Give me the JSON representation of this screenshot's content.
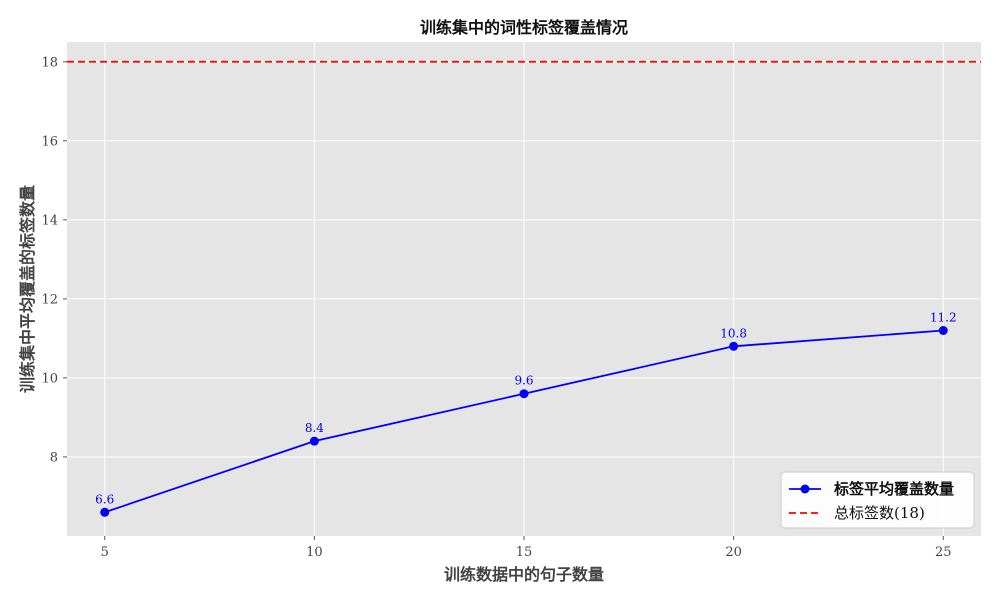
{
  "chart_data": {
    "type": "line",
    "title": "训练集中的词性标签覆盖情况",
    "xlabel": "训练数据中的句子数量",
    "ylabel": "训练集中平均覆盖的标签数量",
    "x": [
      5,
      10,
      15,
      20,
      25
    ],
    "series": [
      {
        "name": "标签平均覆盖数量",
        "values": [
          6.6,
          8.4,
          9.6,
          10.8,
          11.2
        ],
        "data_labels": [
          "6.6",
          "8.4",
          "9.6",
          "10.8",
          "11.2"
        ],
        "color": "#0000ff",
        "marker": "circle"
      }
    ],
    "reference_line": {
      "name": "总标签数(18)",
      "value": 18,
      "color": "#ff0000",
      "style": "dashed"
    },
    "xlim": [
      4.1,
      25.9
    ],
    "ylim": [
      6.0,
      18.5
    ],
    "x_ticks": [
      5,
      10,
      15,
      20,
      25
    ],
    "y_ticks": [
      8,
      10,
      12,
      14,
      16,
      18
    ],
    "grid": true,
    "legend_position": "lower-right",
    "colors": {
      "plot_background": "#e5e5e5",
      "grid": "#ffffff",
      "text": "#444444"
    }
  }
}
